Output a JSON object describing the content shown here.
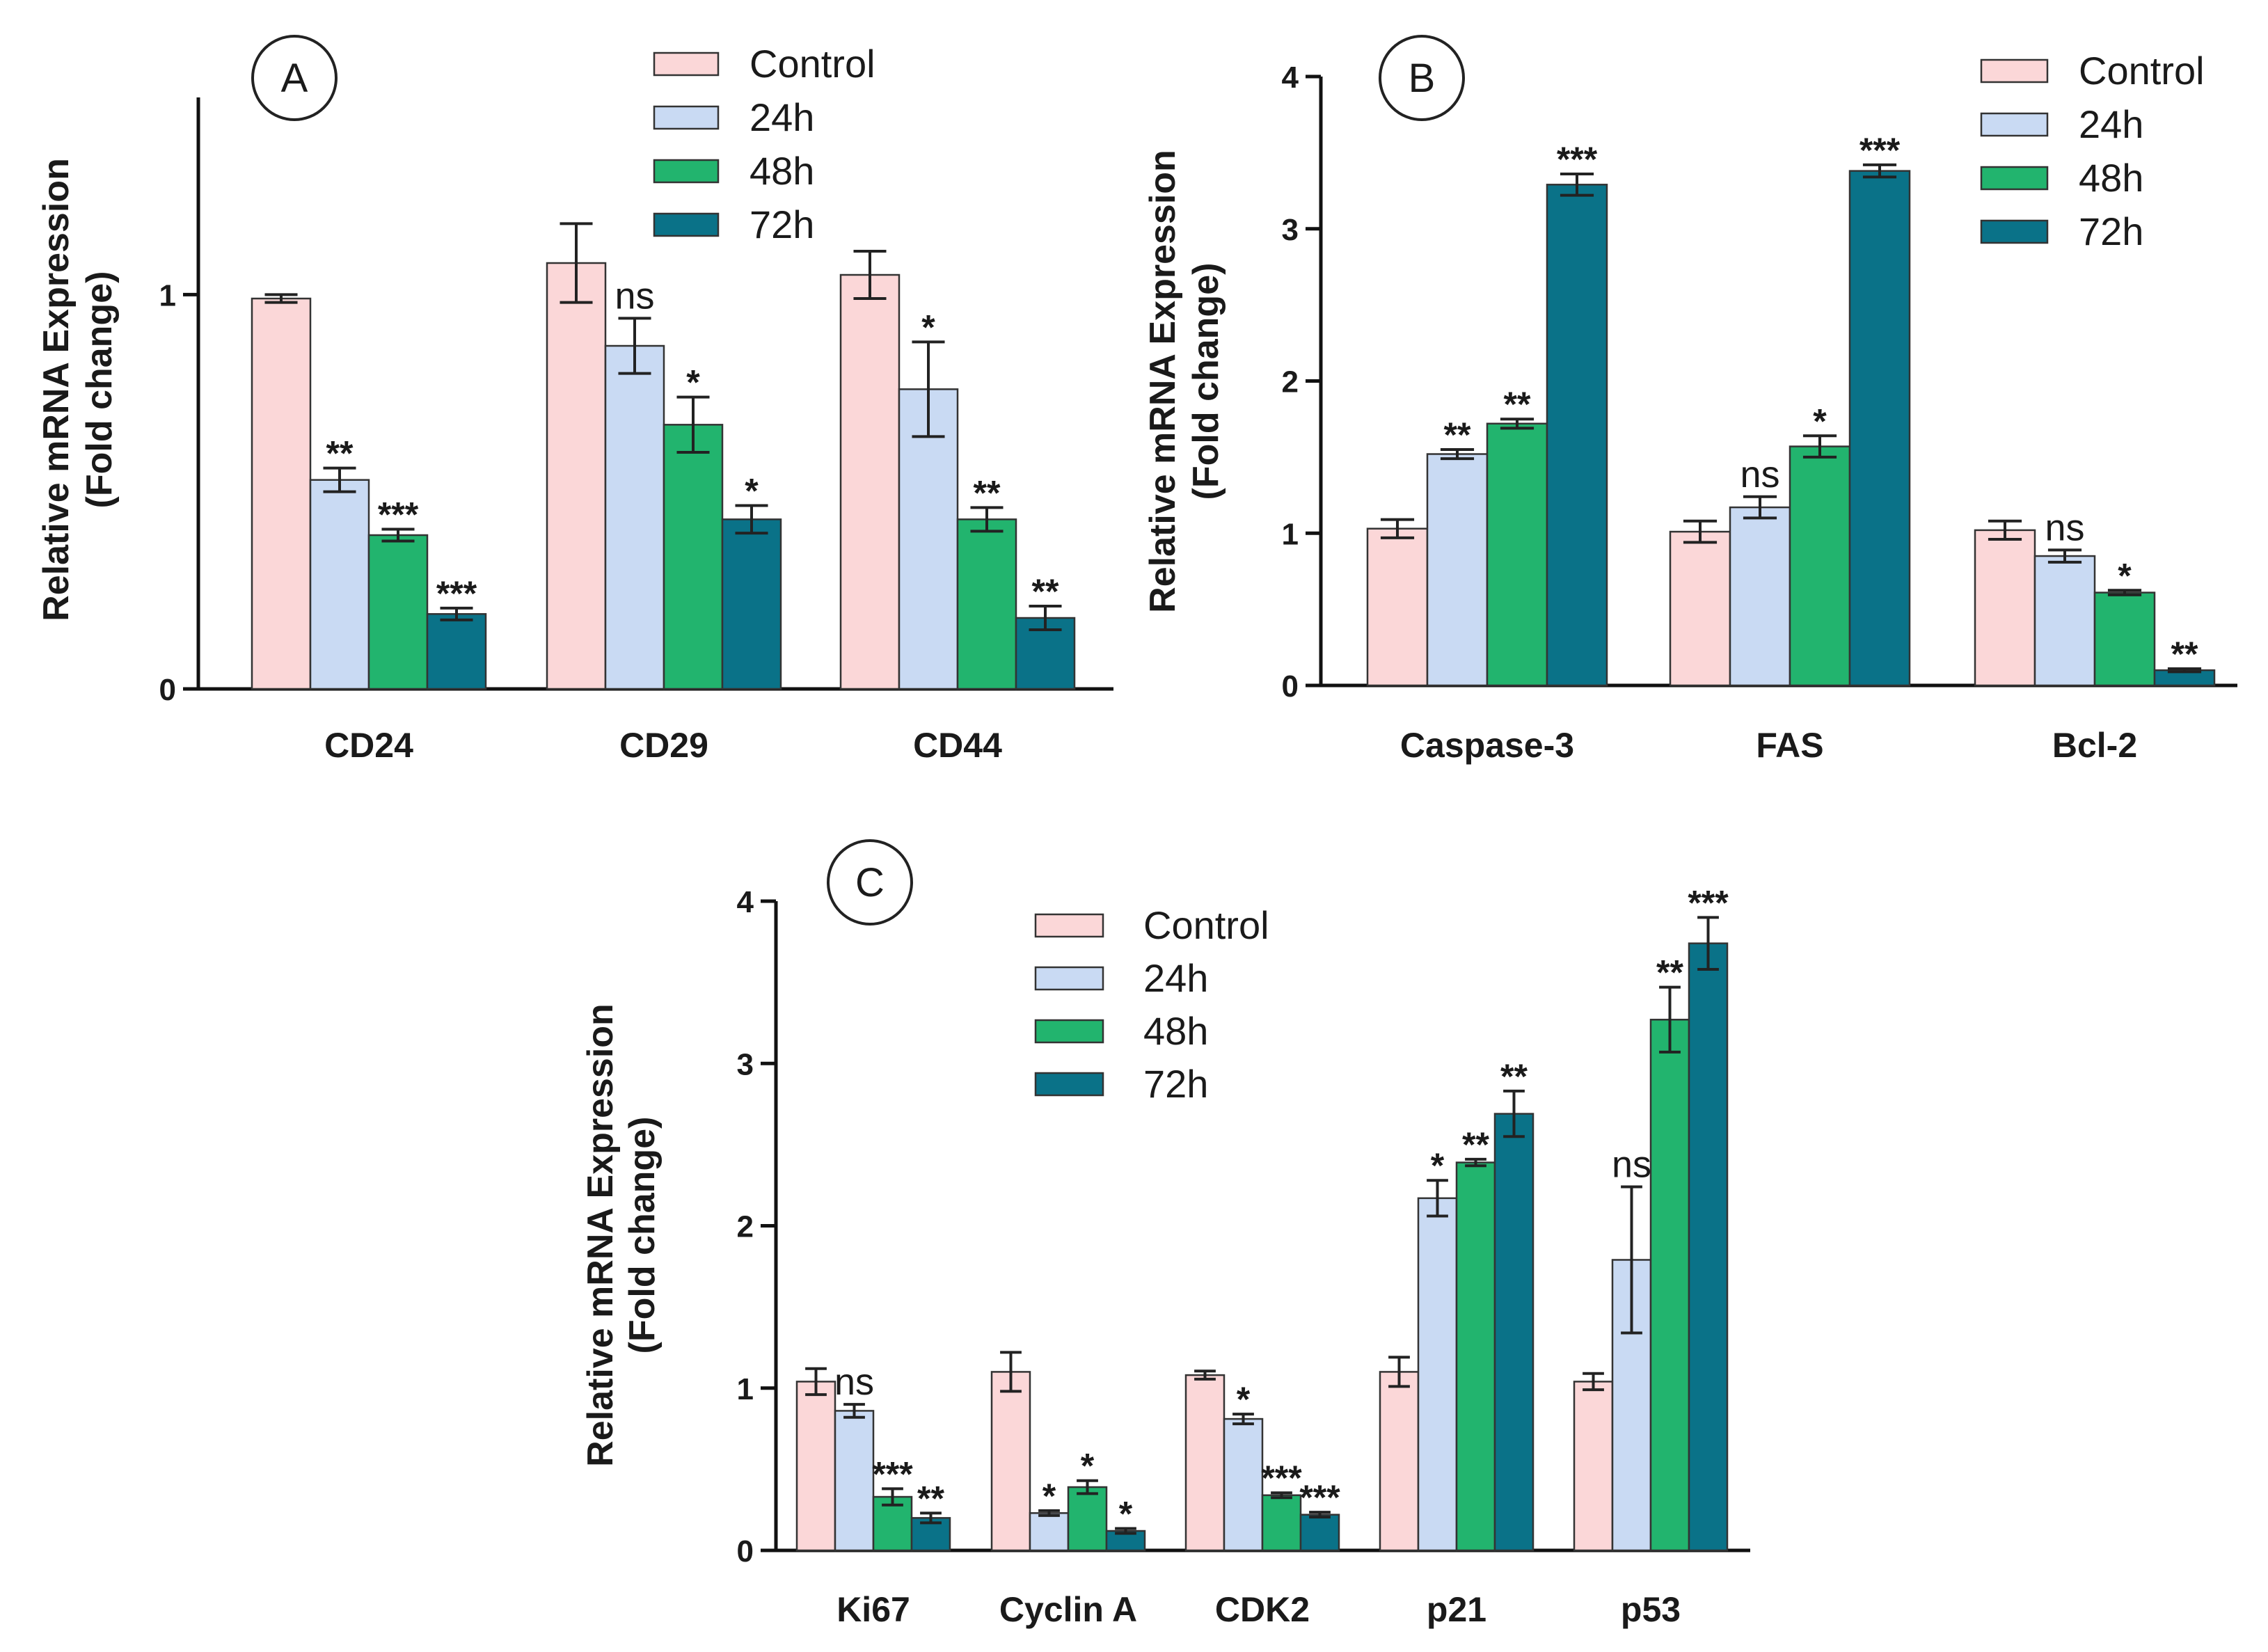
{
  "colors": {
    "Control": "#fbd7d8",
    "24h": "#c9daf3",
    "48h": "#22b46e",
    "72h": "#0a7288"
  },
  "chart_data": [
    {
      "type": "bar",
      "panel": "A",
      "ylabel": "Relative mRNA Expression",
      "ylabel2": "(Fold change)",
      "ylim": [
        0,
        1.5
      ],
      "yticks": [
        0,
        1
      ],
      "tick_labels": [
        "0",
        "1"
      ],
      "categories": [
        "CD24",
        "CD29",
        "CD44"
      ],
      "legend": [
        "Control",
        "24h",
        "48h",
        "72h"
      ],
      "series": [
        {
          "name": "Control",
          "values": [
            0.99,
            1.08,
            1.05
          ],
          "errors": [
            0.01,
            0.1,
            0.06
          ],
          "sig": [
            "",
            "",
            ""
          ]
        },
        {
          "name": "24h",
          "values": [
            0.53,
            0.87,
            0.76
          ],
          "errors": [
            0.03,
            0.07,
            0.12
          ],
          "sig": [
            "**",
            "ns",
            "*"
          ]
        },
        {
          "name": "48h",
          "values": [
            0.39,
            0.67,
            0.43
          ],
          "errors": [
            0.015,
            0.07,
            0.03
          ],
          "sig": [
            "***",
            "*",
            "**"
          ]
        },
        {
          "name": "72h",
          "values": [
            0.19,
            0.43,
            0.18
          ],
          "errors": [
            0.015,
            0.035,
            0.03
          ],
          "sig": [
            "***",
            "*",
            "**"
          ]
        }
      ]
    },
    {
      "type": "bar",
      "panel": "B",
      "ylabel": "Relative mRNA Expression",
      "ylabel2": "(Fold change)",
      "ylim": [
        0,
        4
      ],
      "yticks": [
        0,
        1,
        2,
        3,
        4
      ],
      "tick_labels": [
        "0",
        "1",
        "2",
        "3",
        "4"
      ],
      "categories": [
        "Caspase-3",
        "FAS",
        "Bcl-2"
      ],
      "legend": [
        "Control",
        "24h",
        "48h",
        "72h"
      ],
      "series": [
        {
          "name": "Control",
          "values": [
            1.03,
            1.01,
            1.02
          ],
          "errors": [
            0.06,
            0.07,
            0.06
          ],
          "sig": [
            "",
            "",
            ""
          ]
        },
        {
          "name": "24h",
          "values": [
            1.52,
            1.17,
            0.85
          ],
          "errors": [
            0.03,
            0.07,
            0.04
          ],
          "sig": [
            "**",
            "ns",
            "ns"
          ]
        },
        {
          "name": "48h",
          "values": [
            1.72,
            1.57,
            0.61
          ],
          "errors": [
            0.03,
            0.07,
            0.015
          ],
          "sig": [
            "**",
            "*",
            "*"
          ]
        },
        {
          "name": "72h",
          "values": [
            3.29,
            3.38,
            0.1
          ],
          "errors": [
            0.07,
            0.04,
            0.01
          ],
          "sig": [
            "***",
            "***",
            "**"
          ]
        }
      ]
    },
    {
      "type": "bar",
      "panel": "C",
      "ylabel": "Relative mRNA Expression",
      "ylabel2": "(Fold change)",
      "ylim": [
        0,
        4
      ],
      "yticks": [
        0,
        1,
        2,
        3,
        4
      ],
      "tick_labels": [
        "0",
        "1",
        "2",
        "3",
        "4"
      ],
      "categories": [
        "Ki67",
        "Cyclin A",
        "CDK2",
        "p21",
        "p53"
      ],
      "legend": [
        "Control",
        "24h",
        "48h",
        "72h"
      ],
      "series": [
        {
          "name": "Control",
          "values": [
            1.04,
            1.1,
            1.08,
            1.1,
            1.04
          ],
          "errors": [
            0.08,
            0.12,
            0.025,
            0.09,
            0.05
          ],
          "sig": [
            "",
            "",
            "",
            "",
            ""
          ]
        },
        {
          "name": "24h",
          "values": [
            0.86,
            0.23,
            0.81,
            2.17,
            1.79
          ],
          "errors": [
            0.04,
            0.015,
            0.03,
            0.11,
            0.45
          ],
          "sig": [
            "ns",
            "*",
            "*",
            "*",
            "ns"
          ]
        },
        {
          "name": "48h",
          "values": [
            0.33,
            0.39,
            0.34,
            2.39,
            3.27
          ],
          "errors": [
            0.05,
            0.04,
            0.015,
            0.02,
            0.2
          ],
          "sig": [
            "***",
            "*",
            "***",
            "**",
            "**"
          ]
        },
        {
          "name": "72h",
          "values": [
            0.2,
            0.12,
            0.22,
            2.69,
            3.74
          ],
          "errors": [
            0.03,
            0.015,
            0.015,
            0.14,
            0.16
          ],
          "sig": [
            "**",
            "*",
            "***",
            "**",
            "***"
          ]
        }
      ]
    }
  ]
}
